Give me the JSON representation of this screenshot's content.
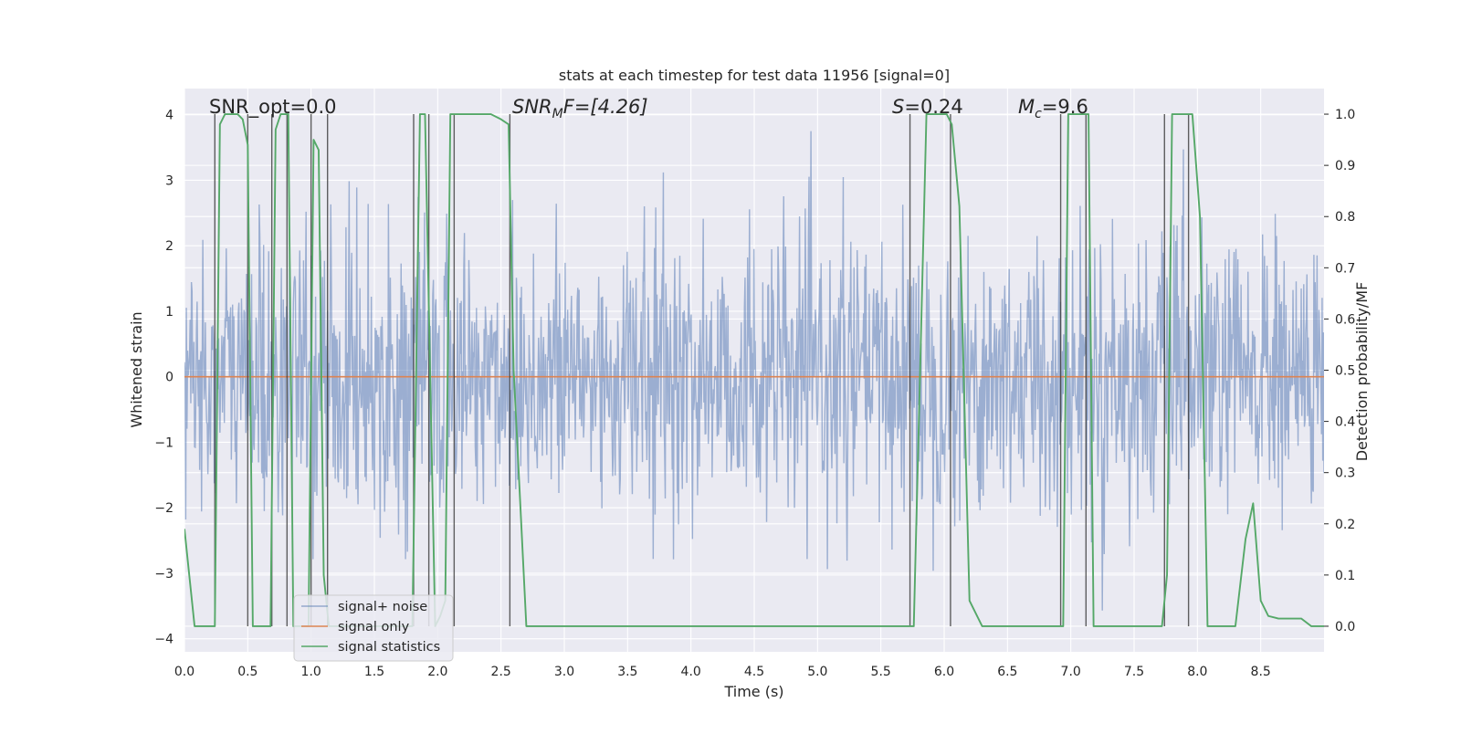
{
  "chart_data": {
    "type": "line",
    "title": "stats at each timestep for test data 11956 [signal=0]",
    "xlabel": "Time (s)",
    "ylabel_left": "Whitened strain",
    "ylabel_right": "Detection probability/MF",
    "xlim": [
      0,
      9.0
    ],
    "ylim_left": [
      -4.2,
      4.4
    ],
    "ylim_right": [
      -0.05,
      1.05
    ],
    "xticks": [
      "0.0",
      "0.5",
      "1.0",
      "1.5",
      "2.0",
      "2.5",
      "3.0",
      "3.5",
      "4.0",
      "4.5",
      "5.0",
      "5.5",
      "6.0",
      "6.5",
      "7.0",
      "7.5",
      "8.0",
      "8.5"
    ],
    "yticks_left": [
      "4",
      "3",
      "2",
      "1",
      "0",
      "−1",
      "−2",
      "−3",
      "−4"
    ],
    "yticks_right": [
      "1.0",
      "0.9",
      "0.8",
      "0.7",
      "0.6",
      "0.5",
      "0.4",
      "0.3",
      "0.2",
      "0.1",
      "0.0"
    ],
    "grid": true,
    "legend_position": "lower-left",
    "annotations": {
      "snr_opt": "SNR_opt=0.0",
      "snr_mf_prefix": "SNR",
      "snr_mf_sub": "M",
      "snr_mf_suffix": "F=[4.26]",
      "s_prefix": "S",
      "s_suffix": "=0.24",
      "mc_prefix": "M",
      "mc_sub": "c",
      "mc_suffix": "=9.6"
    },
    "series": [
      {
        "name": "signal+ noise",
        "color": "#4c72b0",
        "description_values": "whitened noise, roughly spanning -3.8 to 3.7, sampled densely over 0-9 s",
        "sample_count": 1800,
        "amplitude_sigma": 1.0
      },
      {
        "name": "signal only",
        "color": "#dd8452",
        "values_constant": 0.0
      },
      {
        "name": "signal statistics",
        "color": "#55a868",
        "x": [
          0.0,
          0.08,
          0.2,
          0.24,
          0.28,
          0.32,
          0.42,
          0.46,
          0.5,
          0.54,
          0.58,
          0.68,
          0.72,
          0.76,
          0.82,
          0.86,
          0.98,
          1.02,
          1.06,
          1.1,
          1.14,
          1.2,
          1.26,
          1.3,
          1.34,
          1.38,
          1.42,
          1.48,
          1.52,
          1.6,
          1.7,
          1.8,
          1.86,
          1.9,
          1.94,
          1.98,
          2.02,
          2.06,
          2.1,
          2.14,
          2.18,
          2.3,
          2.42,
          2.5,
          2.56,
          2.6,
          2.7,
          2.82,
          3.0,
          4.0,
          5.0,
          5.5,
          5.74,
          5.76,
          5.86,
          5.94,
          6.02,
          6.06,
          6.12,
          6.2,
          6.3,
          6.9,
          6.94,
          6.98,
          7.06,
          7.14,
          7.18,
          7.22,
          7.3,
          7.72,
          7.76,
          7.8,
          7.86,
          7.92,
          7.96,
          8.02,
          8.08,
          8.22,
          8.3,
          8.38,
          8.44,
          8.5,
          8.56,
          8.64,
          8.72,
          8.76,
          8.82,
          8.9,
          8.96,
          9.0
        ],
        "values": [
          0.19,
          0.0,
          0.0,
          0.0,
          0.98,
          1.0,
          1.0,
          0.99,
          0.94,
          0.0,
          0.0,
          0.0,
          0.97,
          1.0,
          1.0,
          0.0,
          0.0,
          0.95,
          0.93,
          0.1,
          0.0,
          0.0,
          0.0,
          0.0,
          0.0,
          0.0,
          0.0,
          0.0,
          0.0,
          0.0,
          0.0,
          0.0,
          1.0,
          1.0,
          0.5,
          0.0,
          0.02,
          0.05,
          1.0,
          1.0,
          1.0,
          1.0,
          1.0,
          0.99,
          0.98,
          0.5,
          0.0,
          0.0,
          0.0,
          0.0,
          0.0,
          0.0,
          0.0,
          0.0,
          1.0,
          1.0,
          1.0,
          0.98,
          0.82,
          0.05,
          0.0,
          0.0,
          0.0,
          1.0,
          1.0,
          1.0,
          0.0,
          0.0,
          0.0,
          0.0,
          0.1,
          1.0,
          1.0,
          1.0,
          1.0,
          0.8,
          0.0,
          0.0,
          0.0,
          0.17,
          0.24,
          0.05,
          0.02,
          0.015,
          0.015,
          0.015,
          0.015,
          0.0,
          0.0,
          0.0
        ]
      }
    ],
    "vertical_lines_x": [
      0.24,
      0.5,
      0.69,
      0.81,
      1.0,
      1.13,
      1.81,
      1.93,
      2.13,
      2.57,
      5.73,
      6.05,
      6.92,
      7.12,
      7.74,
      7.93
    ]
  }
}
